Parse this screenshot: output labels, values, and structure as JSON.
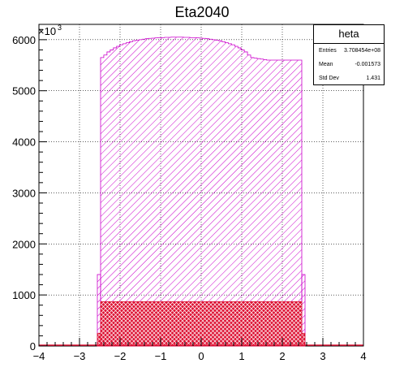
{
  "chart_data": {
    "type": "bar",
    "title": "Eta2040",
    "xlabel": "",
    "ylabel": "",
    "y_exponent_label": "×10",
    "y_exponent_power": "3",
    "xlim": [
      -4,
      4
    ],
    "ylim": [
      0,
      6300
    ],
    "x_ticks": [
      "−4",
      "−3",
      "−2",
      "−1",
      "0",
      "1",
      "2",
      "3",
      "4"
    ],
    "y_ticks": [
      "0",
      "1000",
      "2000",
      "3000",
      "4000",
      "5000",
      "6000"
    ],
    "grid": true,
    "bin_width": 0.08,
    "series": [
      {
        "name": "heta",
        "color": "#cc00cc",
        "style": "hatched",
        "bin_edges_range": [
          -2.56,
          2.56
        ],
        "edge_bins": [
          {
            "x": -2.56,
            "value": 1400
          },
          {
            "x": 2.48,
            "value": 1400
          }
        ],
        "values": [
          5650,
          5700,
          5760,
          5800,
          5840,
          5870,
          5900,
          5920,
          5940,
          5960,
          5980,
          5990,
          6000,
          6010,
          6020,
          6025,
          6030,
          6035,
          6040,
          6040,
          6045,
          6045,
          6050,
          6050,
          6050,
          6050,
          6045,
          6045,
          6040,
          6040,
          6035,
          6030,
          6025,
          6020,
          6010,
          6000,
          5990,
          5980,
          5960,
          5940,
          5920,
          5900,
          5870,
          5840,
          5800,
          5760,
          5700,
          5650,
          5640,
          5630,
          5620,
          5610,
          5600,
          5600,
          5600,
          5600,
          5600,
          5600,
          5600,
          5600,
          5600,
          5600,
          5600
        ]
      },
      {
        "name": "",
        "color": "#dd1133",
        "style": "crosshatched",
        "bin_edges_range": [
          -2.56,
          2.56
        ],
        "edge_bins": [
          {
            "x": -2.56,
            "value": 250
          },
          {
            "x": 2.48,
            "value": 250
          }
        ],
        "level": 870
      }
    ],
    "stats": {
      "title": "heta",
      "rows": [
        {
          "label": "Entries",
          "value": "3.708454e+08"
        },
        {
          "label": "Mean",
          "value": "-0.001573"
        },
        {
          "label": "Std Dev",
          "value": "1.431"
        }
      ]
    }
  }
}
